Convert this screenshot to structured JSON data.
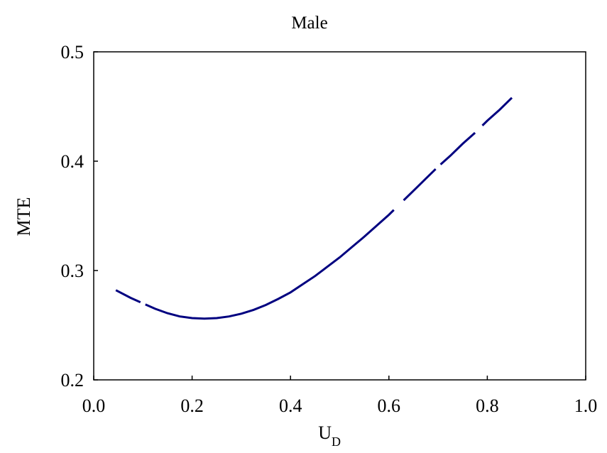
{
  "chart_data": {
    "type": "line",
    "title": "Male",
    "xlabel": "U",
    "xlabel_subscript": "D",
    "ylabel": "MTE",
    "xlim": [
      0.0,
      1.0
    ],
    "ylim": [
      0.2,
      0.5
    ],
    "xticks": [
      "0.0",
      "0.2",
      "0.4",
      "0.6",
      "0.8",
      "1.0"
    ],
    "yticks": [
      "0.2",
      "0.3",
      "0.4",
      "0.5"
    ],
    "grid": false,
    "colors": {
      "line": "#000080",
      "axes": "#000000"
    },
    "series": [
      {
        "x": [
          0.045,
          0.075,
          0.1,
          0.125,
          0.15,
          0.175,
          0.2,
          0.225,
          0.25,
          0.275,
          0.3,
          0.325,
          0.35,
          0.375,
          0.4,
          0.425,
          0.45,
          0.475,
          0.5,
          0.525,
          0.55,
          0.575,
          0.6,
          0.625,
          0.65,
          0.675,
          0.7,
          0.725,
          0.75,
          0.775,
          0.8,
          0.825,
          0.85
        ],
        "y": [
          0.282,
          0.275,
          0.27,
          0.265,
          0.261,
          0.258,
          0.2565,
          0.256,
          0.2565,
          0.258,
          0.2605,
          0.264,
          0.2685,
          0.274,
          0.28,
          0.2875,
          0.295,
          0.3035,
          0.312,
          0.3215,
          0.331,
          0.341,
          0.351,
          0.362,
          0.373,
          0.384,
          0.395,
          0.405,
          0.416,
          0.426,
          0.437,
          0.447,
          0.458
        ]
      }
    ]
  }
}
